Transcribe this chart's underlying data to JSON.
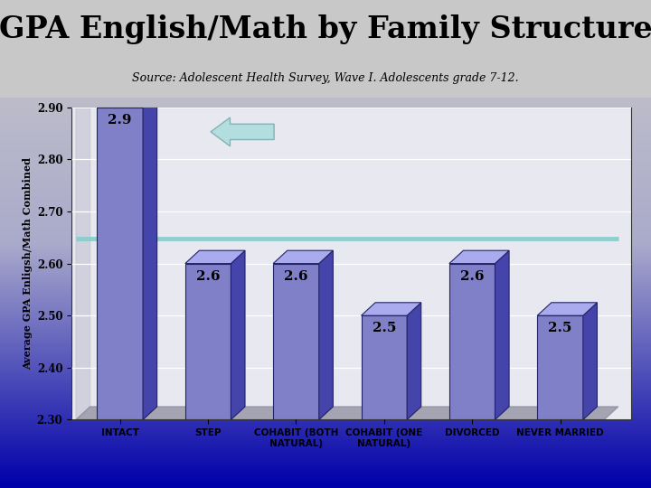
{
  "title": "GPA English/Math by Family Structure",
  "subtitle": "Source: Adolescent Health Survey, Wave I. Adolescents grade 7-12.",
  "ylabel": "Average GPA Enligsh/Math Combined",
  "categories": [
    "INTACT",
    "STEP",
    "COHABIT (BOTH\nNATURAL)",
    "COHABIT (ONE\nNATURAL)",
    "DIVORCED",
    "NEVER MARRIED"
  ],
  "values": [
    2.9,
    2.6,
    2.6,
    2.5,
    2.6,
    2.5
  ],
  "ylim": [
    2.3,
    2.9
  ],
  "yticks": [
    2.3,
    2.4,
    2.5,
    2.6,
    2.7,
    2.8,
    2.9
  ],
  "bar_color": "#8080c8",
  "bar_edge_color": "#222266",
  "bar_side_color": "#4444aa",
  "bar_top_color": "#aaaaee",
  "hline_y": 2.648,
  "hline_color": "#88cccc",
  "arrow_fill": "#aadddd",
  "arrow_edge": "#77aaaa",
  "label_fontsize": 11,
  "title_fontsize": 24,
  "subtitle_fontsize": 9,
  "ylabel_fontsize": 8,
  "tick_fontsize": 8.5,
  "xtick_fontsize": 7.5,
  "bg_top_color": "#c8c8c8",
  "bg_bottom_color": "#0000aa",
  "plot_area_color": "#e8e8f0",
  "floor_color": "#888899",
  "wall_color": "#bbbbcc"
}
